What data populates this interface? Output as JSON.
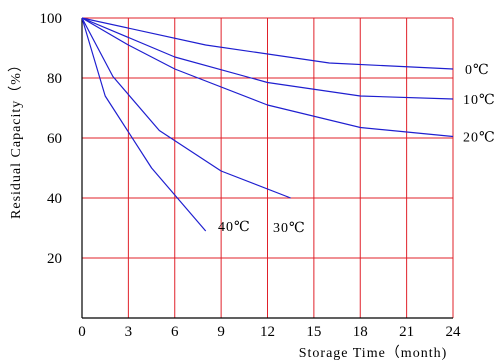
{
  "chart_data": {
    "type": "line",
    "title": "",
    "xlabel": "Storage Time（month)",
    "ylabel": "Residual Capacity（%）",
    "xlim": [
      0,
      24
    ],
    "ylim": [
      0,
      100
    ],
    "x_ticks": [
      0,
      3,
      6,
      9,
      12,
      15,
      18,
      21,
      24
    ],
    "y_ticks": [
      20,
      40,
      60,
      80,
      100
    ],
    "grid": true,
    "colors": {
      "grid": "#e0202a",
      "line": "#1f1fd0",
      "axis": "#000000"
    },
    "series": [
      {
        "name": "0℃",
        "x": [
          0,
          8,
          16,
          24
        ],
        "y": [
          100,
          91,
          85,
          83
        ]
      },
      {
        "name": "10℃",
        "x": [
          0,
          6,
          12,
          18,
          24
        ],
        "y": [
          100,
          87,
          78.5,
          74,
          73
        ]
      },
      {
        "name": "20℃",
        "x": [
          0,
          3,
          6,
          12,
          18,
          24
        ],
        "y": [
          100,
          91,
          83,
          71,
          63.5,
          60.5
        ]
      },
      {
        "name": "30℃",
        "x": [
          0,
          2,
          5,
          9,
          13.5
        ],
        "y": [
          100,
          80.5,
          62.5,
          49,
          40
        ]
      },
      {
        "name": "40℃",
        "x": [
          0,
          1.5,
          4.5,
          8
        ],
        "y": [
          100,
          74,
          50,
          29
        ]
      }
    ]
  }
}
